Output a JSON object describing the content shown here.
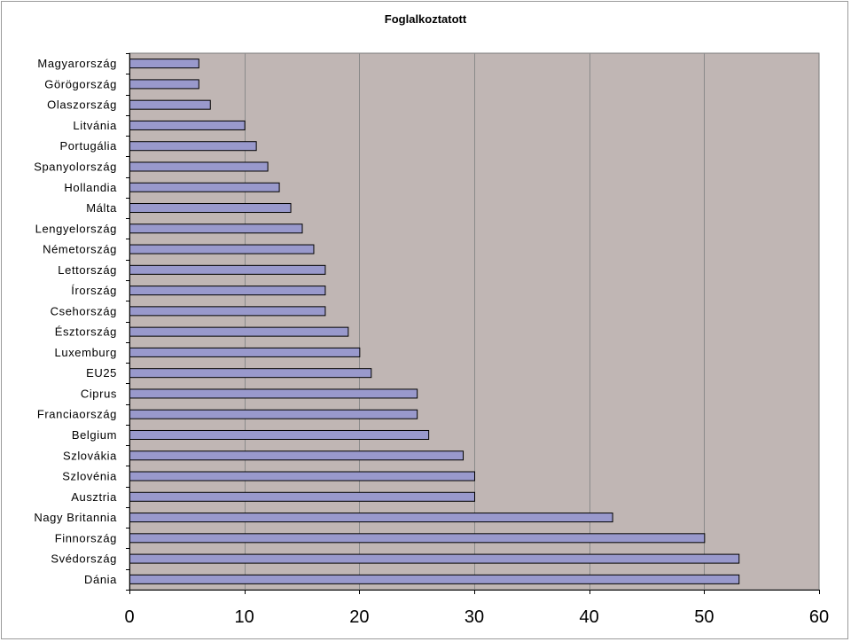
{
  "chart_data": {
    "type": "bar",
    "orientation": "horizontal",
    "title": "Foglalkoztatott",
    "xlabel": "",
    "ylabel": "",
    "xlim": [
      0,
      60
    ],
    "x_ticks": [
      0,
      10,
      20,
      30,
      40,
      50,
      60
    ],
    "grid": "vertical",
    "legend": "none",
    "categories": [
      "Magyarország",
      "Görögország",
      "Olaszország",
      "Litvánia",
      "Portugália",
      "Spanyolország",
      "Hollandia",
      "Málta",
      "Lengyelország",
      "Németország",
      "Lettország",
      "Írország",
      "Csehország",
      "Észtország",
      "Luxemburg",
      "EU25",
      "Ciprus",
      "Franciaország",
      "Belgium",
      "Szlovákia",
      "Szlovénia",
      "Ausztria",
      "Nagy Britannia",
      "Finnország",
      "Svédország",
      "Dánia"
    ],
    "values": [
      6,
      6,
      7,
      10,
      11,
      12,
      13,
      14,
      15,
      16,
      17,
      17,
      17,
      19,
      20,
      21,
      25,
      25,
      26,
      29,
      30,
      30,
      42,
      50,
      53,
      53
    ],
    "colors": {
      "bar_fill": "#9999cc",
      "bar_stroke": "#000000",
      "plot_background": "#c0b6b4",
      "gridline": "#8a8a8a",
      "axis": "#000000"
    }
  }
}
